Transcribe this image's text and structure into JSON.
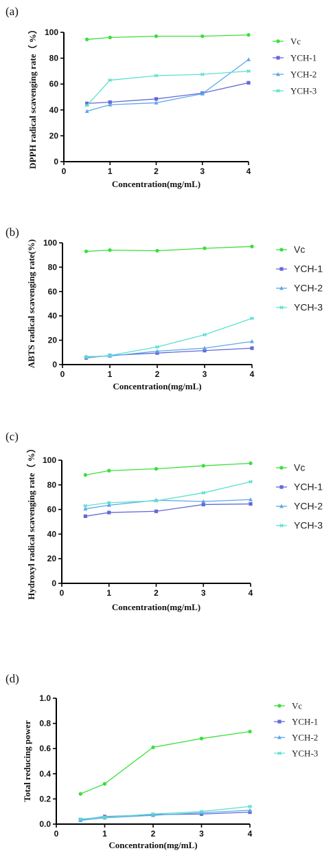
{
  "colors": {
    "Vc": "#3ae03a",
    "YCH-1": "#6468d8",
    "YCH-2": "#5aa8ec",
    "YCH-3": "#5ee0cf"
  },
  "chart_data": [
    {
      "type": "line",
      "panel_label": "(a)",
      "xlabel": "Concentration(mg/mL)",
      "ylabel": "DPPH radical scavenging rate（ %）",
      "xlim": [
        0,
        4
      ],
      "ylim": [
        0,
        100
      ],
      "x_ticks": [
        0,
        1,
        2,
        3,
        4
      ],
      "y_ticks": [
        0,
        20,
        40,
        60,
        80,
        100
      ],
      "legend_position": "right",
      "series": [
        {
          "name": "Vc",
          "x": [
            0.5,
            1,
            2,
            3,
            4
          ],
          "values": [
            94.5,
            96,
            97,
            97,
            98
          ]
        },
        {
          "name": "YCH-1",
          "x": [
            0.5,
            1,
            2,
            3,
            4
          ],
          "values": [
            45,
            46,
            48.5,
            53,
            61
          ]
        },
        {
          "name": "YCH-2",
          "x": [
            0.5,
            1,
            2,
            3,
            4
          ],
          "values": [
            39,
            44,
            45.5,
            52.5,
            79
          ]
        },
        {
          "name": "YCH-3",
          "x": [
            0.5,
            1,
            2,
            3,
            4
          ],
          "values": [
            43.5,
            63,
            66.5,
            67.5,
            70
          ]
        }
      ]
    },
    {
      "type": "line",
      "panel_label": "(b)",
      "xlabel": "Concentration(mg/mL)",
      "ylabel": "ABTS radical scavenging rate(%)",
      "xlim": [
        0,
        4
      ],
      "ylim": [
        0,
        100
      ],
      "x_ticks": [
        0,
        1,
        2,
        3,
        4
      ],
      "y_ticks": [
        0,
        20,
        40,
        60,
        80,
        100
      ],
      "legend_position": "right",
      "series": [
        {
          "name": "Vc",
          "x": [
            0.5,
            1,
            2,
            3,
            4
          ],
          "values": [
            93,
            94,
            93.5,
            95.5,
            97
          ]
        },
        {
          "name": "YCH-1",
          "x": [
            0.5,
            1,
            2,
            3,
            4
          ],
          "values": [
            5.5,
            7.5,
            9.5,
            11.5,
            13.5
          ]
        },
        {
          "name": "YCH-2",
          "x": [
            0.5,
            1,
            2,
            3,
            4
          ],
          "values": [
            6.5,
            7,
            11,
            13.5,
            19
          ]
        },
        {
          "name": "YCH-3",
          "x": [
            0.5,
            1,
            2,
            3,
            4
          ],
          "values": [
            6,
            7.5,
            14.5,
            24.5,
            38
          ]
        }
      ]
    },
    {
      "type": "line",
      "panel_label": "(c)",
      "xlabel": "Concentration(mg/mL)",
      "ylabel": "Hydroxyl radical scavenging rate（ %）",
      "xlim": [
        0,
        4
      ],
      "ylim": [
        0,
        100
      ],
      "x_ticks": [
        0,
        1,
        2,
        3,
        4
      ],
      "y_ticks": [
        0,
        20,
        40,
        60,
        80,
        100
      ],
      "legend_position": "right",
      "series": [
        {
          "name": "Vc",
          "x": [
            0.5,
            1,
            2,
            3,
            4
          ],
          "values": [
            88,
            91.5,
            93,
            95.5,
            97.5
          ]
        },
        {
          "name": "YCH-1",
          "x": [
            0.5,
            1,
            2,
            3,
            4
          ],
          "values": [
            54.5,
            57.5,
            58.5,
            64,
            64.5
          ]
        },
        {
          "name": "YCH-2",
          "x": [
            0.5,
            1,
            2,
            3,
            4
          ],
          "values": [
            60.5,
            63.5,
            67.5,
            66.5,
            68
          ]
        },
        {
          "name": "YCH-3",
          "x": [
            0.5,
            1,
            2,
            3,
            4
          ],
          "values": [
            63,
            65.5,
            67,
            73.5,
            82.5
          ]
        }
      ]
    },
    {
      "type": "line",
      "panel_label": "(d)",
      "xlabel": "Concentration(mg/mL)",
      "ylabel": "Total reducing power",
      "xlim": [
        0,
        4
      ],
      "ylim": [
        0,
        1.0
      ],
      "x_ticks": [
        0,
        1,
        2,
        3,
        4
      ],
      "y_ticks": [
        0.0,
        0.2,
        0.4,
        0.6,
        0.8,
        1.0
      ],
      "legend_position": "right",
      "series": [
        {
          "name": "Vc",
          "x": [
            0.5,
            1,
            2,
            3,
            4
          ],
          "values": [
            0.24,
            0.32,
            0.61,
            0.68,
            0.735
          ]
        },
        {
          "name": "YCH-1",
          "x": [
            0.5,
            1,
            2,
            3,
            4
          ],
          "values": [
            0.035,
            0.06,
            0.075,
            0.08,
            0.095
          ]
        },
        {
          "name": "YCH-2",
          "x": [
            0.5,
            1,
            2,
            3,
            4
          ],
          "values": [
            0.03,
            0.05,
            0.07,
            0.09,
            0.11
          ]
        },
        {
          "name": "YCH-3",
          "x": [
            0.5,
            1,
            2,
            3,
            4
          ],
          "values": [
            0.04,
            0.055,
            0.08,
            0.1,
            0.14
          ]
        }
      ]
    }
  ]
}
